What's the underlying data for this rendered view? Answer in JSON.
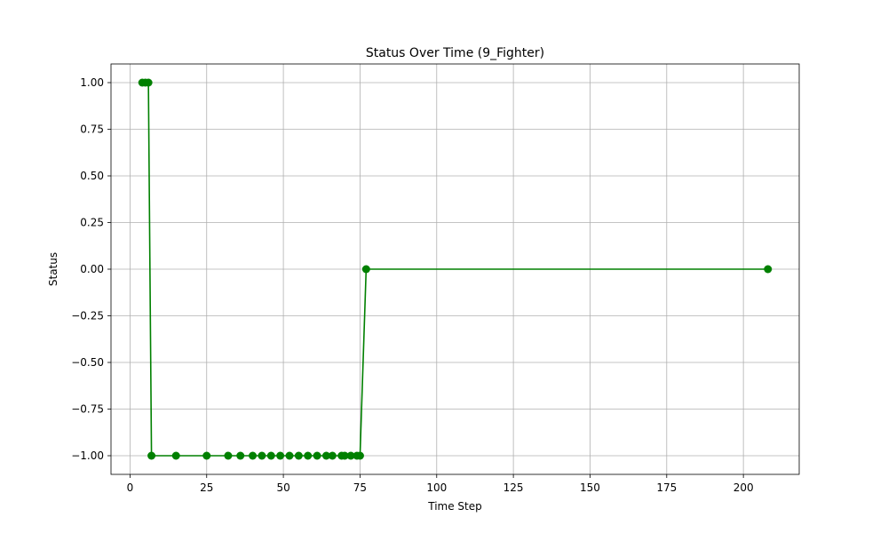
{
  "chart_data": {
    "type": "line",
    "title": "Status Over Time (9_Fighter)",
    "xlabel": "Time Step",
    "ylabel": "Status",
    "xlim": [
      -6.2,
      218.2
    ],
    "ylim": [
      -1.1,
      1.1
    ],
    "xticks": [
      0,
      25,
      50,
      75,
      100,
      125,
      150,
      175,
      200
    ],
    "yticks": [
      1.0,
      0.75,
      0.5,
      0.25,
      0.0,
      -0.25,
      -0.5,
      -0.75,
      -1.0
    ],
    "xtick_labels": [
      "0",
      "25",
      "50",
      "75",
      "100",
      "125",
      "150",
      "175",
      "200"
    ],
    "ytick_labels": [
      "1.00",
      "0.75",
      "0.50",
      "0.25",
      "0.00",
      "−0.25",
      "−0.50",
      "−0.75",
      "−1.00"
    ],
    "grid": true,
    "series": [
      {
        "color": "#008000",
        "marker": "circle",
        "x": [
          4,
          5,
          6,
          7,
          15,
          25,
          32,
          36,
          40,
          43,
          46,
          49,
          52,
          55,
          58,
          61,
          64,
          66,
          69,
          70,
          72,
          74,
          75,
          77,
          208
        ],
        "y": [
          1,
          1,
          1,
          -1,
          -1,
          -1,
          -1,
          -1,
          -1,
          -1,
          -1,
          -1,
          -1,
          -1,
          -1,
          -1,
          -1,
          -1,
          -1,
          -1,
          -1,
          -1,
          -1,
          0,
          0
        ]
      }
    ]
  }
}
